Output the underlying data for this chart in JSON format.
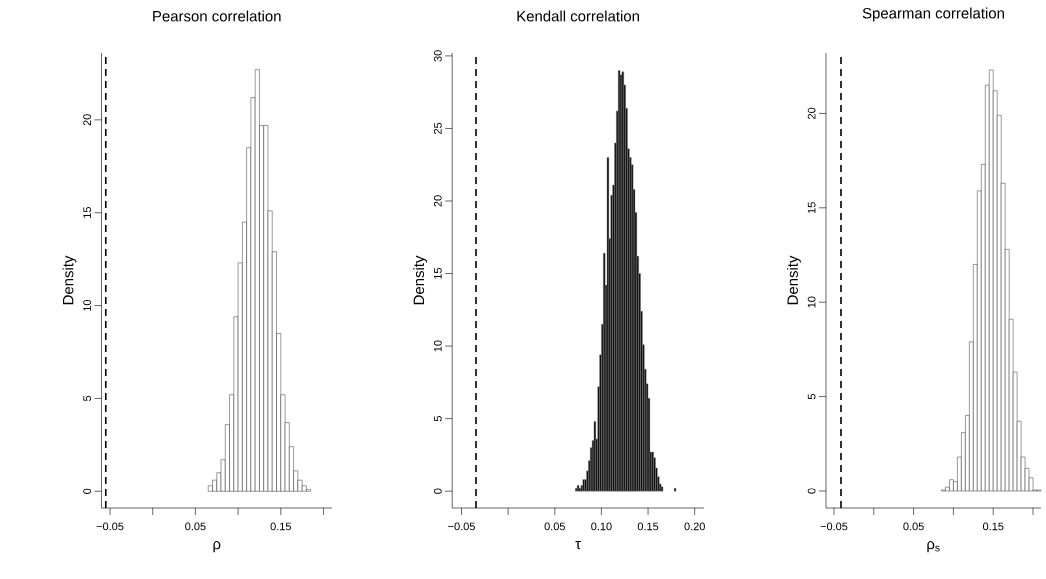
{
  "chart_data": [
    {
      "type": "histogram",
      "title": "Pearson correlation",
      "xlabel": "ρ",
      "ylabel": "Density",
      "color": "#ffffff",
      "bins": [
        0.065,
        0.07,
        0.075,
        0.08,
        0.085,
        0.09,
        0.095,
        0.1,
        0.105,
        0.11,
        0.115,
        0.12,
        0.125,
        0.13,
        0.135,
        0.14,
        0.145,
        0.15,
        0.155,
        0.16,
        0.165,
        0.17,
        0.175,
        0.18,
        0.185
      ],
      "values": [
        0.3,
        0.6,
        1.0,
        1.7,
        3.6,
        5.2,
        9.4,
        12.3,
        14.5,
        18.5,
        21.2,
        22.7,
        19.7,
        19.7,
        15.1,
        12.9,
        8.5,
        5.2,
        3.7,
        2.4,
        1.1,
        0.6,
        0.3,
        0.1
      ],
      "xlim": [
        -0.06,
        0.21
      ],
      "ylim": [
        -0.9,
        23.6
      ],
      "xticks": [
        {
          "value": -0.05,
          "label": "−0.05"
        },
        {
          "value": 0,
          "label": null
        },
        {
          "value": 0.05,
          "label": "0.05"
        },
        {
          "value": 0.1,
          "label": null
        },
        {
          "value": 0.15,
          "label": "0.15"
        },
        {
          "value": 0.2,
          "label": null
        }
      ],
      "yticks": [
        0,
        5,
        10,
        15,
        20
      ],
      "ref_lines": [
        {
          "axis": "x",
          "value": -0.055,
          "color": "#000000",
          "line_style": "dashed"
        }
      ]
    },
    {
      "type": "histogram",
      "title": "Kendall correlation",
      "xlabel": "τ",
      "ylabel": "Density",
      "color": "#0a0a0a",
      "bins": [
        0.072,
        0.074,
        0.076,
        0.078,
        0.08,
        0.082,
        0.084,
        0.086,
        0.088,
        0.09,
        0.092,
        0.094,
        0.096,
        0.098,
        0.1,
        0.102,
        0.104,
        0.106,
        0.108,
        0.11,
        0.112,
        0.114,
        0.116,
        0.118,
        0.12,
        0.122,
        0.124,
        0.126,
        0.128,
        0.13,
        0.132,
        0.134,
        0.136,
        0.138,
        0.14,
        0.142,
        0.144,
        0.146,
        0.148,
        0.15,
        0.152,
        0.154,
        0.156,
        0.158,
        0.16,
        0.162,
        0.164,
        0.166,
        0.178,
        0.18
      ],
      "values": [
        0.2,
        0.4,
        0.2,
        0.4,
        0.8,
        0.8,
        1.4,
        2.1,
        3.0,
        3.5,
        4.8,
        3.6,
        7.2,
        9.4,
        11.5,
        16.4,
        14.2,
        23.0,
        17.4,
        20.4,
        21.1,
        24.0,
        26.2,
        29.0,
        28.7,
        28.9,
        28.0,
        26.4,
        23.6,
        23.0,
        22.5,
        20.8,
        19.2,
        16.2,
        15.0,
        12.4,
        10.1,
        8.4,
        7.4,
        6.4,
        2.7,
        2.7,
        2.3,
        1.6,
        1.0,
        0.5,
        0.3,
        null,
        0.2
      ],
      "xlim": [
        -0.06,
        0.21
      ],
      "ylim": [
        -1.16,
        30.2
      ],
      "xticks": [
        {
          "value": -0.05,
          "label": "−0.05"
        },
        {
          "value": 0,
          "label": null
        },
        {
          "value": 0.05,
          "label": "0.05"
        },
        {
          "value": 0.1,
          "label": "0.10"
        },
        {
          "value": 0.15,
          "label": "0.15"
        },
        {
          "value": 0.2,
          "label": "0.20"
        }
      ],
      "yticks": [
        0,
        5,
        10,
        15,
        20,
        25,
        30
      ],
      "ref_lines": [
        {
          "axis": "x",
          "value": -0.0345,
          "color": "#000000",
          "line_style": "dashed"
        }
      ]
    },
    {
      "type": "histogram",
      "title": "Spearman correlation",
      "xlabel": "ρ$_{s}$",
      "ylabel": "Density",
      "color": "#ffffff",
      "bins": [
        0.085,
        0.09,
        0.095,
        0.1,
        0.105,
        0.11,
        0.115,
        0.12,
        0.125,
        0.13,
        0.135,
        0.14,
        0.145,
        0.15,
        0.155,
        0.16,
        0.165,
        0.17,
        0.175,
        0.18,
        0.185,
        0.19,
        0.195,
        0.2,
        0.205,
        0.21
      ],
      "values": [
        0.05,
        0.2,
        0.6,
        0.5,
        1.8,
        3.1,
        4.0,
        7.9,
        12.0,
        15.9,
        17.3,
        21.5,
        22.3,
        21.2,
        19.9,
        16.3,
        12.8,
        9.1,
        6.3,
        3.7,
        1.8,
        1.2,
        0.7,
        0.05,
        0.05
      ],
      "xlim": [
        -0.06,
        0.21
      ],
      "ylim": [
        -0.9,
        23.2
      ],
      "xticks": [
        {
          "value": -0.05,
          "label": "−0.05"
        },
        {
          "value": 0,
          "label": null
        },
        {
          "value": 0.05,
          "label": "0.05"
        },
        {
          "value": 0.1,
          "label": null
        },
        {
          "value": 0.15,
          "label": "0.15"
        },
        {
          "value": 0.2,
          "label": null
        }
      ],
      "yticks": [
        0,
        5,
        10,
        15,
        20
      ],
      "ref_lines": [
        {
          "axis": "x",
          "value": -0.0412,
          "color": "#000000",
          "line_style": "dashed"
        }
      ]
    }
  ]
}
